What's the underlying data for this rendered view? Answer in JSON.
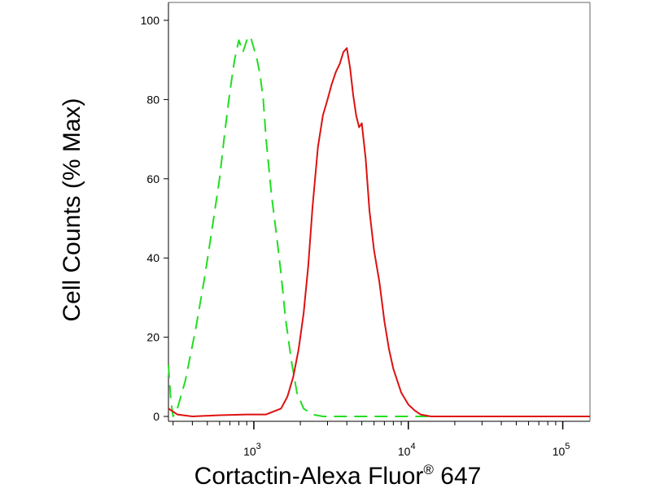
{
  "chart_data": {
    "type": "line",
    "title": "",
    "xlabel": "Cortactin-Alexa Fluor",
    "xlabel_mark": "®",
    "xlabel_suffix": " 647",
    "ylabel": "Cell Counts (% Max)",
    "x_scale": "log",
    "xlim": [
      280,
      150000
    ],
    "ylim": [
      0,
      100
    ],
    "grid": false,
    "legend": "none",
    "y_ticks": [
      0,
      20,
      40,
      60,
      80,
      100
    ],
    "y_tick_labels": [
      "0",
      "20",
      "40",
      "60",
      "80",
      "100"
    ],
    "x_major_ticks": [
      1000,
      10000,
      100000
    ],
    "x_tick_base": "10",
    "x_tick_exponents": [
      "3",
      "4",
      "5"
    ],
    "series": [
      {
        "color": "#22dd22",
        "style": "dashed",
        "x": [
          280,
          290,
          300,
          320,
          360,
          420,
          480,
          540,
          600,
          650,
          700,
          750,
          800,
          850,
          900,
          950,
          1000,
          1050,
          1100,
          1150,
          1200,
          1300,
          1400,
          1500,
          1600,
          1750,
          1900,
          2100,
          2400,
          2800,
          3500,
          5000,
          10000,
          150000
        ],
        "y": [
          13,
          4,
          0,
          2,
          9,
          22,
          35,
          48,
          60,
          72,
          82,
          90,
          95,
          92,
          95,
          96,
          93,
          90,
          86,
          80,
          70,
          56,
          46,
          36,
          25,
          14,
          6,
          2,
          0.5,
          0,
          0,
          0,
          0,
          0
        ]
      },
      {
        "color": "#dd1111",
        "style": "solid",
        "x": [
          280,
          320,
          400,
          600,
          900,
          1200,
          1500,
          1650,
          1800,
          1950,
          2100,
          2250,
          2400,
          2600,
          2800,
          3000,
          3200,
          3400,
          3600,
          3800,
          4000,
          4200,
          4400,
          4600,
          4800,
          5000,
          5300,
          5600,
          6000,
          6500,
          7000,
          7500,
          8000,
          9000,
          10000,
          11000,
          12000,
          14000,
          20000,
          150000
        ],
        "y": [
          2,
          0.5,
          0,
          0.3,
          0.5,
          0.5,
          2,
          5,
          10,
          17,
          26,
          38,
          53,
          68,
          76,
          80,
          84,
          87,
          89,
          92,
          93,
          88,
          81,
          76,
          73,
          74,
          65,
          52,
          42,
          34,
          24,
          17,
          12,
          6,
          3,
          1.5,
          0.5,
          0,
          0,
          0
        ]
      }
    ]
  }
}
